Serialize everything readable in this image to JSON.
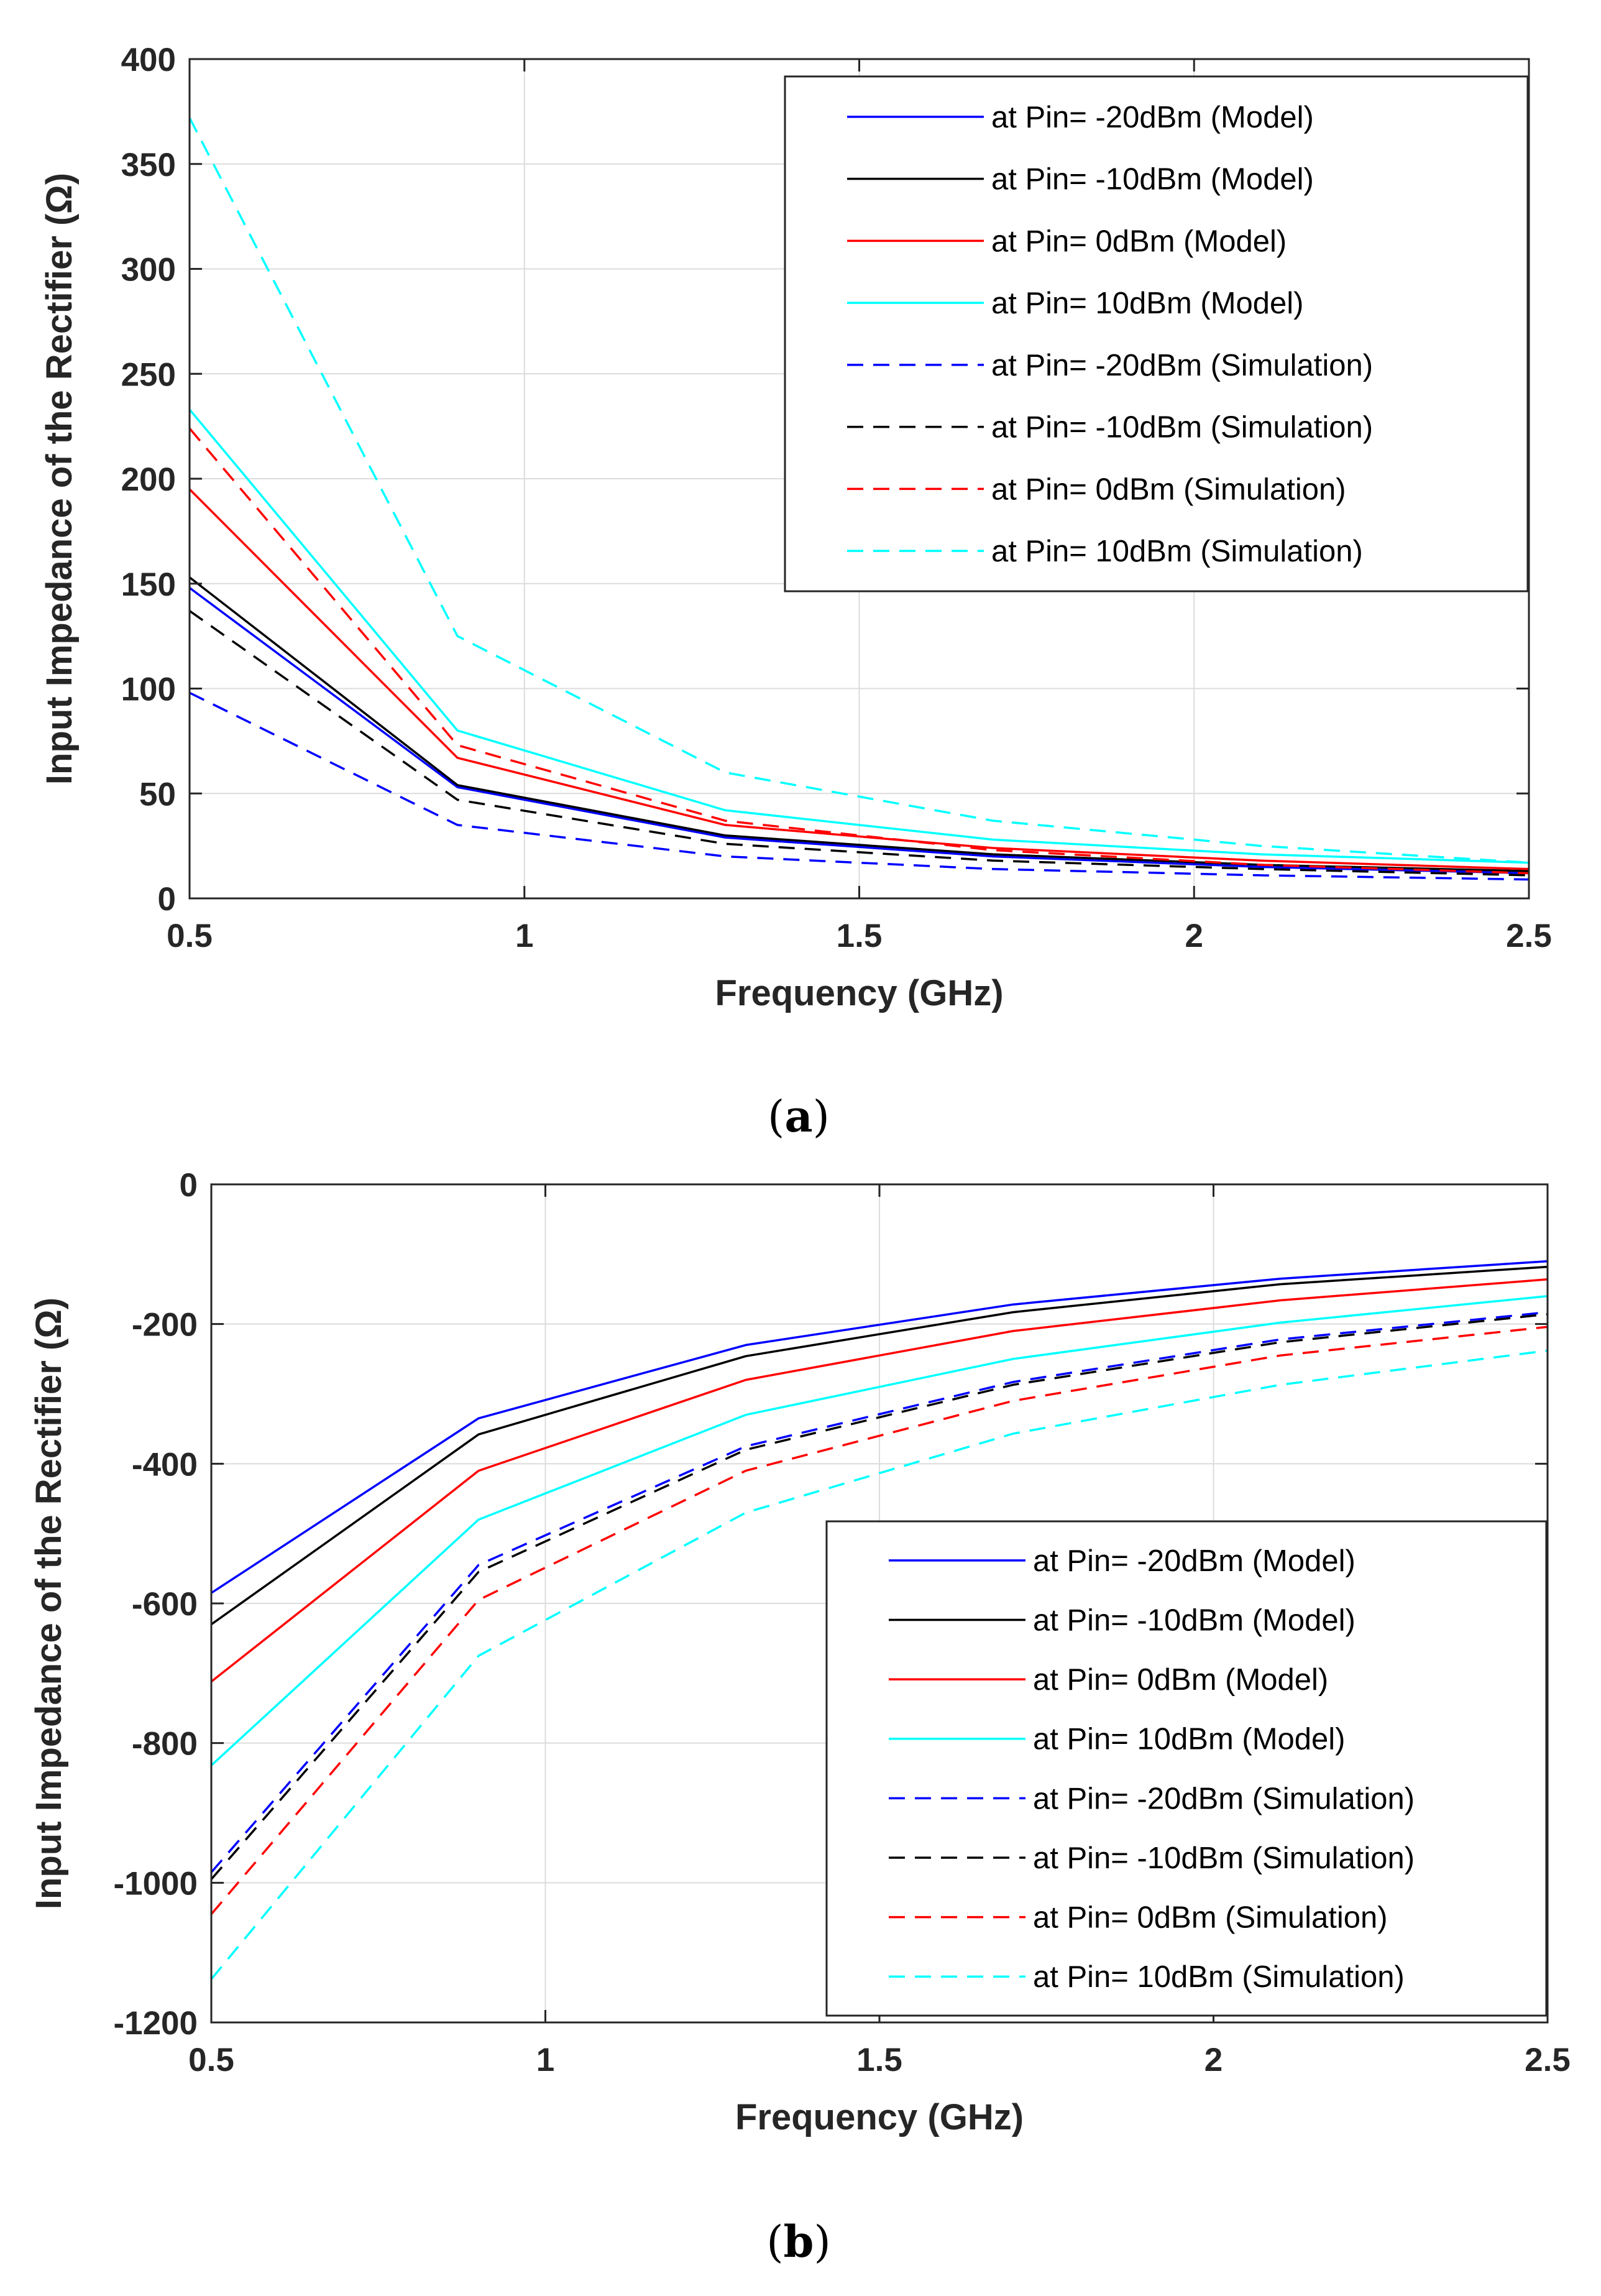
{
  "chart_data": [
    {
      "type": "line",
      "title": "",
      "caption": "(a)",
      "caption_letter": "a",
      "xlabel": "Frequency (GHz)",
      "ylabel": "Input Impedance of the Rectifier (Ω)",
      "xlim": [
        0.5,
        2.5
      ],
      "ylim": [
        0,
        400
      ],
      "xticks": [
        0.5,
        1,
        1.5,
        2,
        2.5
      ],
      "xtick_labels": [
        "0.5",
        "1",
        "1.5",
        "2",
        "2.5"
      ],
      "yticks": [
        0,
        50,
        100,
        150,
        200,
        250,
        300,
        350,
        400
      ],
      "ytick_labels": [
        "0",
        "50",
        "100",
        "150",
        "200",
        "250",
        "300",
        "350",
        "400"
      ],
      "grid": true,
      "legend_position": "top-right",
      "x": [
        0.5,
        0.9,
        1.3,
        1.7,
        2.1,
        2.5
      ],
      "series": [
        {
          "name": "at Pin= -20dBm (Model)",
          "color": "#0000ff",
          "dash": "solid",
          "values": [
            148,
            53,
            29,
            20,
            15,
            12
          ]
        },
        {
          "name": "at Pin= -10dBm (Model)",
          "color": "#000000",
          "dash": "solid",
          "values": [
            153,
            54,
            30,
            21,
            16,
            13
          ]
        },
        {
          "name": "at Pin= 0dBm (Model)",
          "color": "#ff0000",
          "dash": "solid",
          "values": [
            195,
            67,
            35,
            24,
            18,
            14
          ]
        },
        {
          "name": "at Pin= 10dBm (Model)",
          "color": "#00ffff",
          "dash": "solid",
          "values": [
            233,
            80,
            42,
            28,
            21,
            17
          ]
        },
        {
          "name": "at Pin= -20dBm (Simulation)",
          "color": "#0000ff",
          "dash": "dashed",
          "values": [
            98,
            35,
            20,
            14,
            11,
            9
          ]
        },
        {
          "name": "at Pin= -10dBm (Simulation)",
          "color": "#000000",
          "dash": "dashed",
          "values": [
            137,
            47,
            26,
            18,
            14,
            11
          ]
        },
        {
          "name": "at Pin= 0dBm (Simulation)",
          "color": "#ff0000",
          "dash": "dashed",
          "values": [
            224,
            73,
            37,
            23,
            16,
            12
          ]
        },
        {
          "name": "at Pin= 10dBm (Simulation)",
          "color": "#00ffff",
          "dash": "dashed",
          "values": [
            372,
            125,
            60,
            37,
            25,
            17
          ]
        }
      ]
    },
    {
      "type": "line",
      "title": "",
      "caption": "(b)",
      "caption_letter": "b",
      "xlabel": "Frequency (GHz)",
      "ylabel": "Input Impedance of the Rectifier (Ω)",
      "xlim": [
        0.5,
        2.5
      ],
      "ylim": [
        -1200,
        0
      ],
      "xticks": [
        0.5,
        1,
        1.5,
        2,
        2.5
      ],
      "xtick_labels": [
        "0.5",
        "1",
        "1.5",
        "2",
        "2.5"
      ],
      "yticks": [
        -1200,
        -1000,
        -800,
        -600,
        -400,
        -200,
        0
      ],
      "ytick_labels": [
        "-1200",
        "-1000",
        "-800",
        "-600",
        "-400",
        "-200",
        "0"
      ],
      "grid": true,
      "legend_position": "bottom-right",
      "x": [
        0.5,
        0.9,
        1.3,
        1.7,
        2.1,
        2.5
      ],
      "series": [
        {
          "name": "at Pin= -20dBm (Model)",
          "color": "#0000ff",
          "dash": "solid",
          "values": [
            -585,
            -335,
            -230,
            -172,
            -135,
            -110
          ]
        },
        {
          "name": "at Pin= -10dBm (Model)",
          "color": "#000000",
          "dash": "solid",
          "values": [
            -630,
            -358,
            -246,
            -183,
            -143,
            -118
          ]
        },
        {
          "name": "at Pin= 0dBm (Model)",
          "color": "#ff0000",
          "dash": "solid",
          "values": [
            -712,
            -410,
            -280,
            -210,
            -166,
            -136
          ]
        },
        {
          "name": "at Pin= 10dBm (Model)",
          "color": "#00ffff",
          "dash": "solid",
          "values": [
            -832,
            -480,
            -330,
            -250,
            -198,
            -160
          ]
        },
        {
          "name": "at Pin= -20dBm (Simulation)",
          "color": "#0000ff",
          "dash": "dashed",
          "values": [
            -985,
            -545,
            -375,
            -283,
            -222,
            -183
          ]
        },
        {
          "name": "at Pin= -10dBm (Simulation)",
          "color": "#000000",
          "dash": "dashed",
          "values": [
            -995,
            -555,
            -380,
            -287,
            -226,
            -186
          ]
        },
        {
          "name": "at Pin= 0dBm (Simulation)",
          "color": "#ff0000",
          "dash": "dashed",
          "values": [
            -1045,
            -595,
            -410,
            -310,
            -245,
            -204
          ]
        },
        {
          "name": "at Pin= 10dBm (Simulation)",
          "color": "#00ffff",
          "dash": "dashed",
          "values": [
            -1138,
            -675,
            -470,
            -357,
            -287,
            -238
          ]
        }
      ]
    }
  ]
}
